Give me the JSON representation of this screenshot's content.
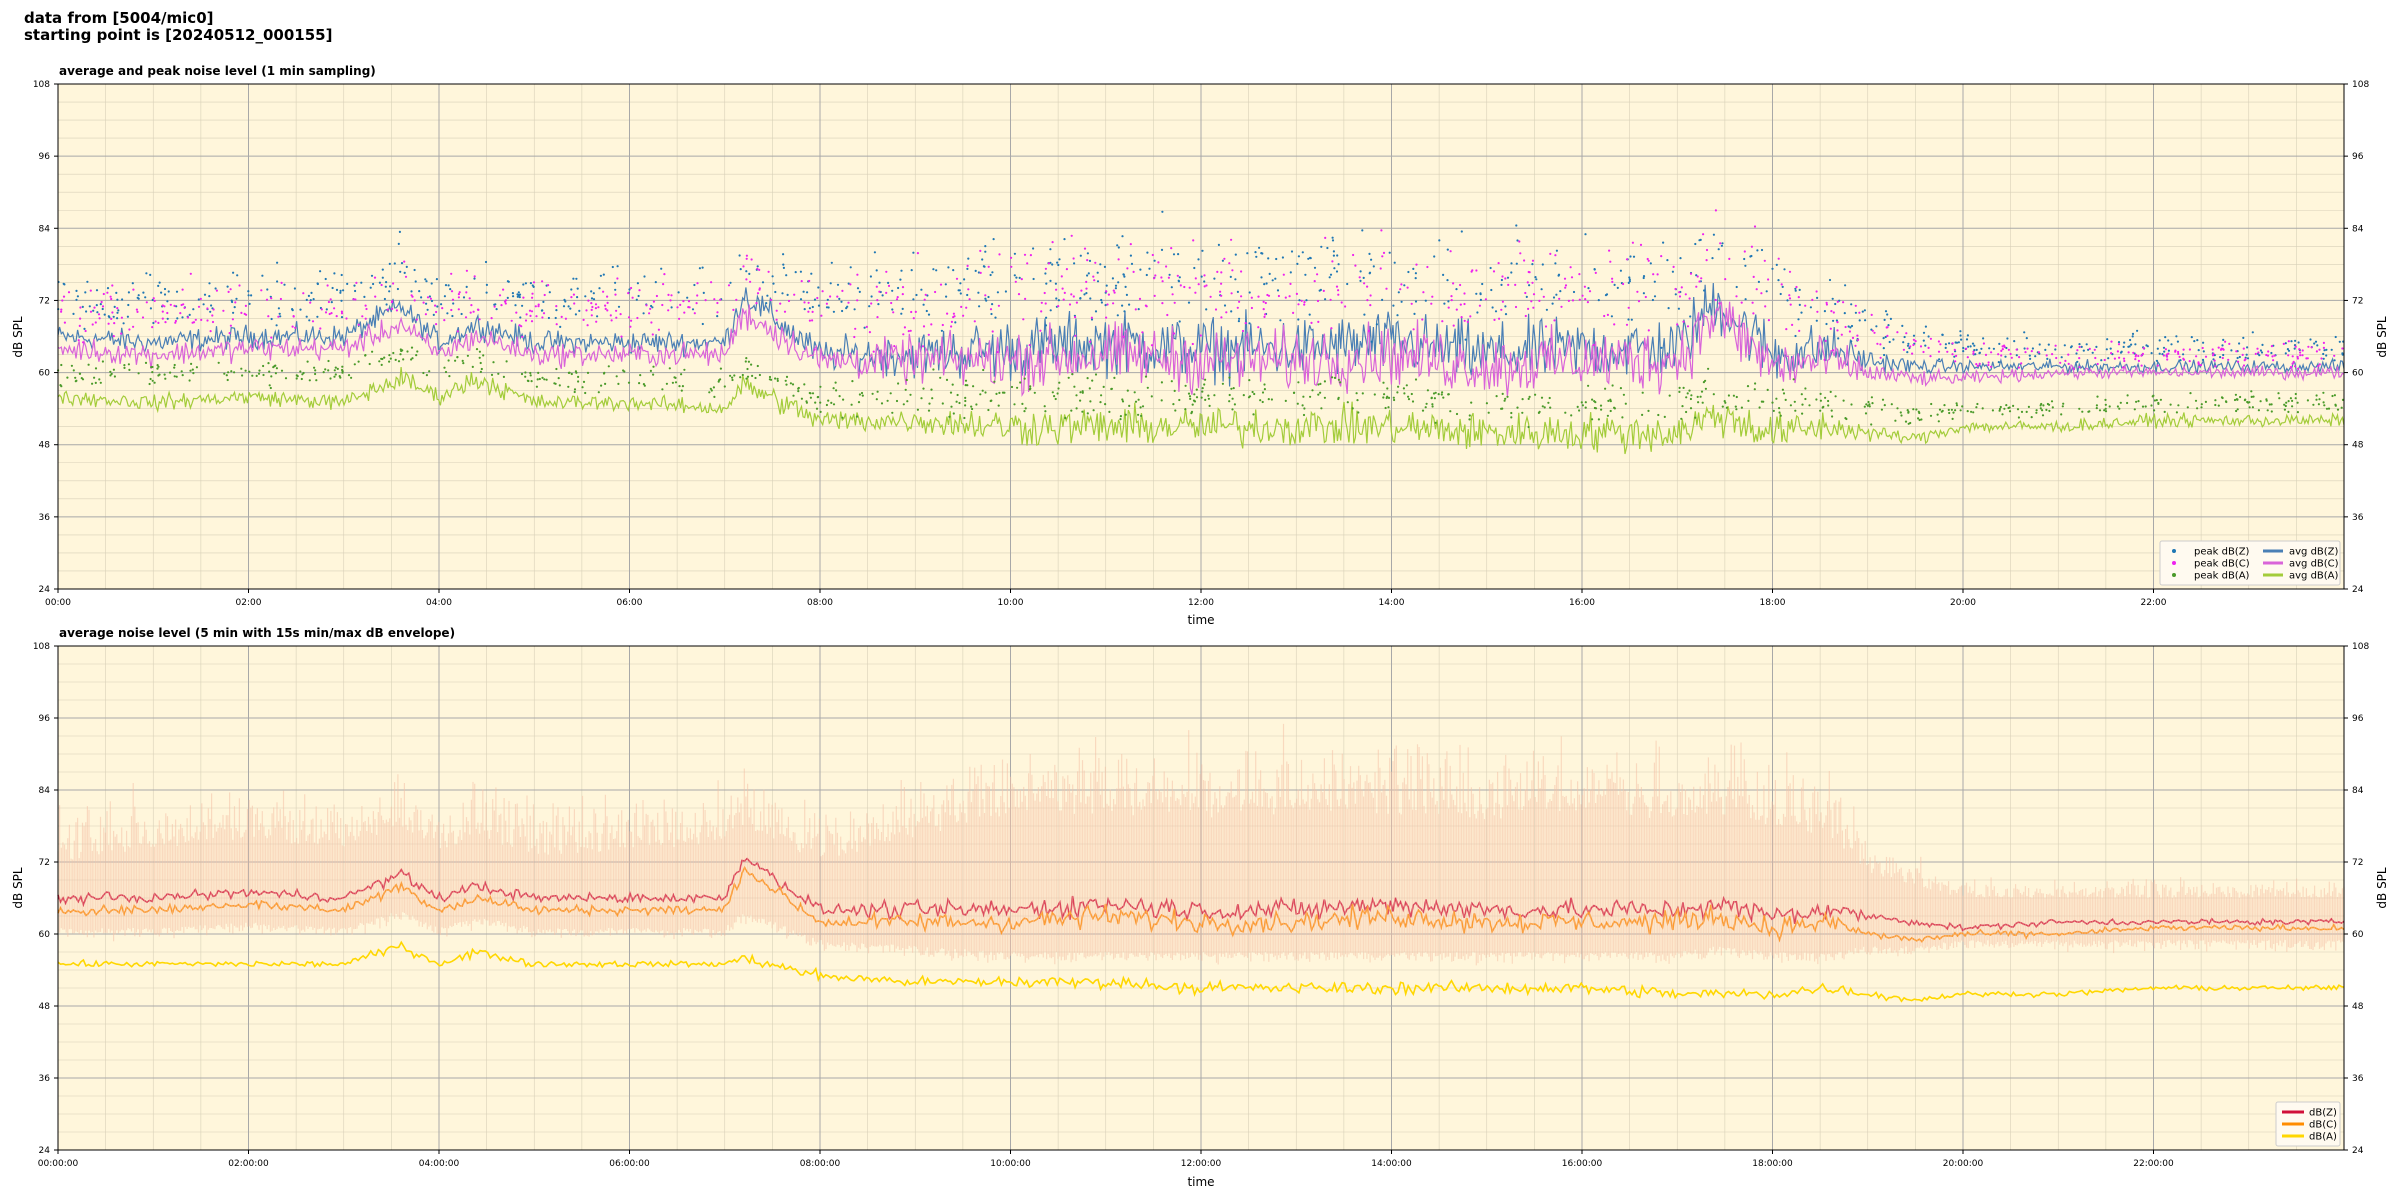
{
  "header": {
    "line1": "data from [5004/mic0]",
    "line2": "starting point is [20240512_000155]"
  },
  "colors": {
    "plot_bg": "#fff6db",
    "peak_z": "#1f77b4",
    "peak_c": "#ee22ee",
    "peak_a": "#4a9a2a",
    "avg_z": "#4a7fb5",
    "avg_c": "#d964d9",
    "avg_a": "#a3cc3a",
    "dbz": "#d0103a",
    "dbc": "#ff8c00",
    "dba": "#ffd700",
    "envelope": "#f5c2a8"
  },
  "chart_data": [
    {
      "type": "line",
      "title": "average and peak noise level (1 min sampling)",
      "xlabel": "time",
      "ylabel": "dB SPL",
      "xlim": [
        0,
        24
      ],
      "ylim": [
        24,
        108
      ],
      "yticks": [
        24,
        36,
        48,
        60,
        72,
        84,
        96,
        108
      ],
      "xtick_labels": [
        "00:00",
        "02:00",
        "04:00",
        "06:00",
        "08:00",
        "10:00",
        "12:00",
        "14:00",
        "16:00",
        "18:00",
        "20:00",
        "22:00"
      ],
      "grid": true,
      "legend_position": "lower-right",
      "legend": [
        "peak dB(Z)",
        "peak dB(C)",
        "peak dB(A)",
        "avg dB(Z)",
        "avg dB(C)",
        "avg dB(A)"
      ],
      "x_hours": [
        0,
        1,
        2,
        3,
        3.6,
        4,
        4.4,
        5,
        6,
        7,
        7.2,
        8,
        9,
        10,
        11,
        12,
        13,
        14,
        15,
        16,
        17,
        17.4,
        18,
        18.6,
        19,
        19.5,
        20,
        21,
        22,
        23,
        24
      ],
      "series": [
        {
          "name": "avg dB(Z)",
          "kind": "line",
          "values": [
            66,
            65,
            66,
            66,
            71,
            65,
            68,
            65,
            65,
            65,
            73,
            63,
            63,
            64,
            65,
            64,
            64,
            65,
            63,
            64,
            64,
            72,
            63,
            64,
            62,
            61,
            61,
            61,
            61,
            61,
            61
          ],
          "variability": [
            1.5,
            1.5,
            1.5,
            1.5,
            1.5,
            1.5,
            1.5,
            1.5,
            1.5,
            1.5,
            2,
            2,
            3,
            4,
            4,
            4,
            4,
            4,
            4,
            4,
            4,
            4,
            4,
            3,
            1.5,
            1,
            0.8,
            0.8,
            0.8,
            0.8,
            0.8
          ]
        },
        {
          "name": "avg dB(C)",
          "kind": "line",
          "values": [
            64,
            63,
            64,
            64,
            68,
            63,
            66,
            63,
            63,
            63,
            70,
            62,
            62,
            62,
            63,
            62,
            62,
            63,
            61,
            62,
            62,
            70,
            61,
            62,
            60,
            59,
            59,
            60,
            60,
            60,
            60
          ],
          "variability": [
            1.5,
            1.5,
            1.5,
            1.5,
            1.5,
            1.5,
            1.5,
            1.5,
            1.5,
            1.5,
            2,
            2,
            3,
            4,
            4,
            4,
            4,
            4,
            4,
            4,
            4,
            4,
            4,
            3,
            1.5,
            1,
            0.8,
            0.8,
            0.8,
            0.8,
            0.8
          ]
        },
        {
          "name": "avg dB(A)",
          "kind": "line",
          "values": [
            56,
            55,
            56,
            55,
            59,
            56,
            59,
            55,
            55,
            54,
            58,
            52,
            52,
            51,
            51,
            51,
            51,
            51,
            50,
            50,
            50,
            53,
            50,
            51,
            50,
            49,
            51,
            51,
            52,
            52,
            52
          ],
          "variability": [
            1,
            1,
            1,
            1,
            1.5,
            1,
            1.5,
            1,
            1,
            1,
            1.5,
            1.5,
            1.5,
            2.5,
            2.5,
            2.5,
            2.5,
            2.5,
            2.5,
            2.5,
            2.5,
            2.5,
            2.5,
            2,
            1,
            0.8,
            0.8,
            0.8,
            0.8,
            0.8,
            0.8
          ]
        },
        {
          "name": "peak dB(Z)",
          "kind": "scatter",
          "values": [
            72,
            72,
            73,
            72,
            77,
            72,
            74,
            72,
            73,
            73,
            78,
            72,
            74,
            76,
            76,
            75,
            76,
            76,
            75,
            76,
            75,
            80,
            74,
            72,
            68,
            66,
            64,
            64,
            64,
            64,
            64
          ],
          "variability": [
            4,
            4,
            4,
            4,
            4,
            4,
            4,
            4,
            4,
            4,
            4,
            5,
            6,
            7,
            7,
            7,
            7,
            7,
            7,
            7,
            7,
            7,
            7,
            6,
            4,
            3,
            2,
            2,
            2,
            2,
            2
          ]
        },
        {
          "name": "peak dB(C)",
          "kind": "scatter",
          "values": [
            70,
            70,
            71,
            70,
            75,
            70,
            72,
            70,
            71,
            71,
            76,
            70,
            72,
            74,
            74,
            73,
            74,
            74,
            73,
            74,
            73,
            78,
            72,
            70,
            66,
            64,
            63,
            63,
            63,
            63,
            63
          ],
          "variability": [
            4,
            4,
            4,
            4,
            4,
            4,
            4,
            4,
            4,
            4,
            4,
            5,
            6,
            7,
            7,
            7,
            7,
            7,
            7,
            7,
            7,
            7,
            7,
            6,
            4,
            3,
            2,
            2,
            2,
            2,
            2
          ]
        },
        {
          "name": "peak dB(A)",
          "kind": "scatter",
          "values": [
            60,
            60,
            60,
            60,
            63,
            60,
            62,
            59,
            59,
            58,
            61,
            56,
            56,
            56,
            56,
            56,
            56,
            56,
            55,
            55,
            55,
            57,
            55,
            55,
            54,
            53,
            54,
            54,
            55,
            55,
            55
          ],
          "variability": [
            2,
            2,
            2,
            2,
            2,
            2,
            2,
            2,
            2,
            2,
            2,
            2,
            3,
            3,
            3,
            3,
            3,
            3,
            3,
            3,
            3,
            3,
            3,
            3,
            2,
            1.5,
            1.5,
            1.5,
            1.5,
            1.5,
            1.5
          ]
        }
      ]
    },
    {
      "type": "line",
      "title": "average noise level (5 min with 15s min/max dB envelope)",
      "xlabel": "time",
      "ylabel": "dB SPL",
      "xlim": [
        0,
        24
      ],
      "ylim": [
        24,
        108
      ],
      "yticks": [
        24,
        36,
        48,
        60,
        72,
        84,
        96,
        108
      ],
      "xtick_labels": [
        "00:00:00",
        "02:00:00",
        "04:00:00",
        "06:00:00",
        "08:00:00",
        "10:00:00",
        "12:00:00",
        "14:00:00",
        "16:00:00",
        "18:00:00",
        "20:00:00",
        "22:00:00"
      ],
      "grid": true,
      "legend_position": "lower-right",
      "legend": [
        "dB(Z)",
        "dB(C)",
        "dB(A)"
      ],
      "x_hours": [
        0,
        1,
        2,
        3,
        3.6,
        4,
        4.4,
        5,
        6,
        7,
        7.2,
        8,
        9,
        10,
        11,
        12,
        13,
        14,
        15,
        16,
        17,
        17.4,
        18,
        18.6,
        19,
        19.5,
        20,
        21,
        22,
        23,
        24
      ],
      "series": [
        {
          "name": "dB(Z)",
          "kind": "line",
          "values": [
            66,
            66,
            67,
            66,
            70,
            66,
            68,
            66,
            66,
            66,
            73,
            64,
            64,
            64,
            65,
            64,
            64,
            65,
            64,
            64,
            64,
            65,
            63,
            64,
            63,
            62,
            61,
            62,
            62,
            62,
            62
          ],
          "variability": [
            0.8,
            0.8,
            0.8,
            0.8,
            1,
            0.8,
            1,
            0.8,
            0.8,
            0.8,
            1,
            1,
            1.5,
            1.8,
            1.8,
            1.8,
            1.8,
            1.8,
            1.8,
            1.8,
            1.8,
            1.8,
            1.8,
            1.5,
            0.8,
            0.6,
            0.5,
            0.5,
            0.5,
            0.5,
            0.5
          ]
        },
        {
          "name": "dB(C)",
          "kind": "line",
          "values": [
            64,
            64,
            65,
            64,
            68,
            64,
            66,
            64,
            64,
            64,
            71,
            62,
            62,
            62,
            63,
            62,
            62,
            63,
            62,
            62,
            62,
            63,
            61,
            62,
            60,
            59,
            60,
            60,
            61,
            61,
            61
          ],
          "variability": [
            0.8,
            0.8,
            0.8,
            0.8,
            1,
            0.8,
            1,
            0.8,
            0.8,
            0.8,
            1,
            1,
            1.5,
            1.8,
            1.8,
            1.8,
            1.8,
            1.8,
            1.8,
            1.8,
            1.8,
            1.8,
            1.8,
            1.5,
            0.8,
            0.6,
            0.5,
            0.5,
            0.5,
            0.5,
            0.5
          ]
        },
        {
          "name": "dB(A)",
          "kind": "line",
          "values": [
            55,
            55,
            55,
            55,
            58,
            55,
            57,
            55,
            55,
            55,
            56,
            53,
            52,
            52,
            52,
            51,
            51,
            51,
            51,
            51,
            50,
            50,
            50,
            51,
            50,
            49,
            50,
            50,
            51,
            51,
            51
          ],
          "variability": [
            0.5,
            0.5,
            0.5,
            0.5,
            0.8,
            0.5,
            0.8,
            0.5,
            0.5,
            0.5,
            0.8,
            0.8,
            0.8,
            1,
            1,
            1,
            1,
            1,
            1,
            1,
            1,
            1,
            1,
            1,
            0.6,
            0.5,
            0.4,
            0.4,
            0.4,
            0.4,
            0.4
          ]
        },
        {
          "name": "envelope",
          "kind": "band",
          "values": [
            72,
            74,
            76,
            74,
            78,
            74,
            76,
            73,
            74,
            75,
            78,
            72,
            76,
            80,
            80,
            79,
            80,
            80,
            79,
            80,
            79,
            80,
            78,
            76,
            70,
            68,
            66,
            66,
            66,
            66,
            66
          ],
          "lower": [
            61,
            61,
            62,
            61,
            64,
            61,
            63,
            61,
            61,
            61,
            64,
            59,
            58,
            57,
            57,
            57,
            57,
            57,
            57,
            57,
            57,
            58,
            57,
            57,
            58,
            58,
            59,
            59,
            59,
            59,
            59
          ],
          "variability": [
            6,
            6,
            6,
            6,
            6,
            6,
            6,
            6,
            6,
            6,
            6,
            6,
            7,
            8,
            8,
            8,
            8,
            8,
            8,
            8,
            8,
            8,
            8,
            7,
            4,
            3,
            2,
            2,
            2,
            2,
            2
          ]
        }
      ]
    }
  ]
}
